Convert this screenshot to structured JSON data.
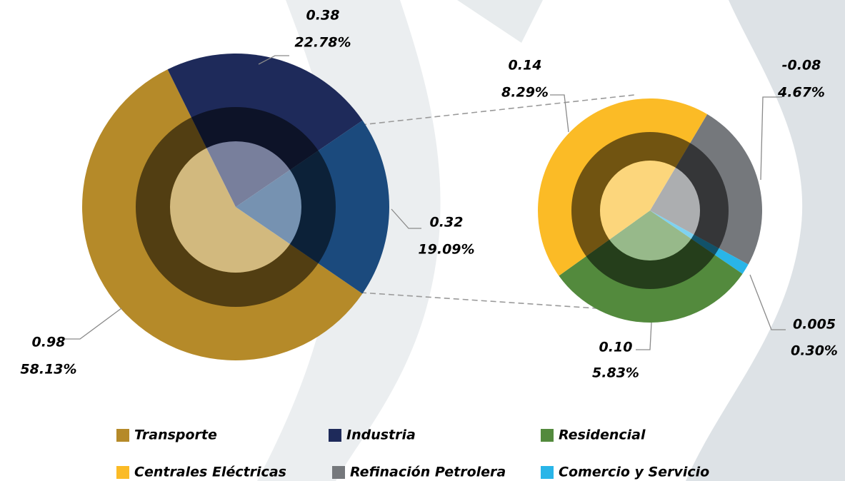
{
  "chart_data": {
    "type": "pie-of-pie",
    "pies": [
      {
        "categories": [
          "Transporte",
          "Industria",
          null
        ],
        "values": [
          0.98,
          0.38,
          0.32
        ],
        "value_labels": [
          "0.98",
          "0.38",
          "0.32"
        ],
        "percents": [
          58.13,
          22.78,
          19.09
        ],
        "percent_labels": [
          "58.13%",
          "22.78%",
          "19.09%"
        ],
        "colors": [
          "#b58a29",
          "#1e2a5a",
          "#1b4a7d"
        ]
      },
      {
        "categories": [
          "Refinación Petrolera",
          "Comercio y Servicio",
          "Residencial",
          "Centrales Eléctricas"
        ],
        "values": [
          -0.08,
          0.005,
          0.1,
          0.14
        ],
        "value_labels": [
          "-0.08",
          "0.005",
          "0.10",
          "0.14"
        ],
        "percents": [
          4.67,
          0.3,
          5.83,
          8.29
        ],
        "percent_labels": [
          "4.67%",
          "0.30%",
          "5.83%",
          "8.29%"
        ],
        "colors": [
          "#75787c",
          "#29b5e8",
          "#538a3d",
          "#fbbb26"
        ]
      }
    ]
  }
}
